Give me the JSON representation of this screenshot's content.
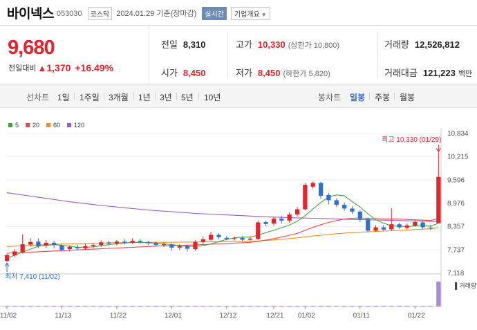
{
  "header": {
    "name": "바이넥스",
    "code": "053030",
    "market": "코스닥",
    "date_basis": "2024.01.29 기준(장마감)",
    "realtime": "실시간",
    "company_info": "기업개요"
  },
  "quote": {
    "price": "9,680",
    "diff_label": "전일대비",
    "diff_value": "1,370",
    "diff_pct": "+16.49%",
    "prev_close_label": "전일",
    "prev_close": "8,310",
    "high_label": "고가",
    "high": "10,330",
    "high_limit": "(상한가 10,800)",
    "volume_label": "거래량",
    "volume": "12,526,812",
    "open_label": "시가",
    "open": "8,450",
    "low_label": "저가",
    "low": "8,450",
    "low_limit": "(하한가 5,820)",
    "value_label": "거래대금",
    "value": "121,223",
    "value_unit": "백만"
  },
  "tabs": {
    "line_label": "선차트",
    "periods": [
      "1일",
      "1주일",
      "3개월",
      "1년",
      "3년",
      "5년",
      "10년"
    ],
    "candle_label": "봉차트",
    "candle_types": [
      "일봉",
      "주봉",
      "월봉"
    ],
    "active_candle": 0
  },
  "legend": [
    {
      "label": "5",
      "color": "#3fa63f"
    },
    {
      "label": "20",
      "color": "#e8484f"
    },
    {
      "label": "60",
      "color": "#f08c1e"
    },
    {
      "label": "120",
      "color": "#9a5cc7"
    }
  ],
  "chart_data": {
    "type": "candlestick",
    "y_ticks": [
      "10,834",
      "10,215",
      "9,596",
      "8,976",
      "8,357",
      "7,737",
      "7,118"
    ],
    "y_tick_values": [
      10834,
      10215,
      9596,
      8976,
      8357,
      7737,
      7118
    ],
    "x_ticks": [
      "11/02",
      "11/13",
      "11/22",
      "12/01",
      "12/12",
      "12/21",
      "01/02",
      "01/11",
      "01/22"
    ],
    "x_tick_index": [
      0,
      7,
      14,
      21,
      28,
      34,
      38,
      45,
      52
    ],
    "high_label": "최고 10,330 (01/29)",
    "low_label": "최저 7,410 (11/02)",
    "volume_legend": "거래량",
    "up_color": "#e8212b",
    "down_color": "#2f6fd6",
    "candles": [
      [
        7450,
        7600,
        7410,
        7630
      ],
      [
        7600,
        7700,
        7560,
        7760
      ],
      [
        7680,
        7890,
        7640,
        8150
      ],
      [
        7880,
        7950,
        7820,
        8050
      ],
      [
        7960,
        7840,
        7780,
        8050
      ],
      [
        7860,
        7930,
        7800,
        8000
      ],
      [
        7930,
        7870,
        7780,
        7980
      ],
      [
        7860,
        7740,
        7700,
        7900
      ],
      [
        7760,
        7820,
        7700,
        7860
      ],
      [
        7810,
        7780,
        7740,
        7880
      ],
      [
        7780,
        7840,
        7740,
        7900
      ],
      [
        7840,
        7870,
        7780,
        7920
      ],
      [
        7870,
        7940,
        7820,
        7990
      ],
      [
        7940,
        7910,
        7860,
        7980
      ],
      [
        7910,
        7960,
        7850,
        8000
      ],
      [
        7960,
        7930,
        7880,
        8020
      ],
      [
        7930,
        7980,
        7900,
        8050
      ],
      [
        7980,
        7950,
        7900,
        8020
      ],
      [
        7950,
        7920,
        7860,
        7980
      ],
      [
        7910,
        7870,
        7830,
        7960
      ],
      [
        7870,
        7890,
        7820,
        7940
      ],
      [
        7880,
        7800,
        7720,
        7920
      ],
      [
        7800,
        7840,
        7740,
        7890
      ],
      [
        7840,
        7770,
        7700,
        7880
      ],
      [
        7760,
        7950,
        7720,
        8000
      ],
      [
        7950,
        8020,
        7900,
        8100
      ],
      [
        8010,
        8140,
        7980,
        8220
      ],
      [
        8140,
        8080,
        8020,
        8180
      ],
      [
        8060,
        8030,
        7990,
        8110
      ],
      [
        8030,
        8050,
        7990,
        8090
      ],
      [
        8060,
        8010,
        7980,
        8100
      ],
      [
        8010,
        8040,
        7980,
        8090
      ],
      [
        8030,
        8470,
        8000,
        8520
      ],
      [
        8480,
        8430,
        8370,
        8520
      ],
      [
        8440,
        8570,
        8380,
        8620
      ],
      [
        8570,
        8520,
        8440,
        8650
      ],
      [
        8520,
        8680,
        8460,
        8740
      ],
      [
        8680,
        8820,
        8620,
        8880
      ],
      [
        8820,
        9470,
        8790,
        9520
      ],
      [
        9420,
        9520,
        9370,
        9560
      ],
      [
        9520,
        9180,
        9100,
        9550
      ],
      [
        9200,
        9060,
        8950,
        9250
      ],
      [
        9060,
        8940,
        8880,
        9100
      ],
      [
        8940,
        8840,
        8780,
        9000
      ],
      [
        8840,
        8760,
        8700,
        8900
      ],
      [
        8760,
        8560,
        8480,
        8800
      ],
      [
        8560,
        8250,
        8200,
        8600
      ],
      [
        8250,
        8340,
        8220,
        8400
      ],
      [
        8340,
        8280,
        8230,
        8400
      ],
      [
        8290,
        8420,
        8240,
        8850
      ],
      [
        8420,
        8340,
        8300,
        8460
      ],
      [
        8330,
        8390,
        8290,
        8440
      ],
      [
        8390,
        8480,
        8350,
        8520
      ],
      [
        8470,
        8340,
        8300,
        8510
      ],
      [
        8330,
        8310,
        8260,
        8400
      ],
      [
        8450,
        9680,
        8450,
        10330
      ]
    ],
    "ma5": [
      7520,
      7600,
      7680,
      7760,
      7840,
      7860,
      7880,
      7860,
      7840,
      7810,
      7810,
      7820,
      7850,
      7880,
      7900,
      7920,
      7940,
      7940,
      7930,
      7920,
      7900,
      7880,
      7860,
      7840,
      7830,
      7850,
      7900,
      7960,
      8020,
      8060,
      8080,
      8080,
      8130,
      8200,
      8260,
      8330,
      8400,
      8500,
      8650,
      8830,
      9000,
      9150,
      9200,
      9180,
      9020,
      8880,
      8700,
      8540,
      8450,
      8380,
      8370,
      8360,
      8380,
      8380,
      8370,
      8450
    ],
    "ma20": [
      7650,
      7660,
      7670,
      7680,
      7690,
      7700,
      7710,
      7720,
      7730,
      7740,
      7750,
      7760,
      7770,
      7780,
      7790,
      7800,
      7810,
      7820,
      7830,
      7840,
      7850,
      7855,
      7860,
      7865,
      7870,
      7880,
      7890,
      7900,
      7910,
      7920,
      7930,
      7940,
      7970,
      8000,
      8040,
      8080,
      8130,
      8180,
      8260,
      8340,
      8410,
      8470,
      8520,
      8560,
      8580,
      8590,
      8580,
      8570,
      8560,
      8560,
      8560,
      8550,
      8540,
      8530,
      8520,
      8580
    ],
    "ma60": [
      7830,
      7840,
      7850,
      7860,
      7870,
      7880,
      7890,
      7895,
      7900,
      7905,
      7910,
      7915,
      7920,
      7925,
      7930,
      7932,
      7934,
      7936,
      7938,
      7940,
      7942,
      7944,
      7946,
      7948,
      7950,
      7952,
      7954,
      7956,
      7958,
      7960,
      7962,
      7964,
      7975,
      7990,
      8005,
      8020,
      8040,
      8060,
      8085,
      8110,
      8130,
      8150,
      8170,
      8185,
      8200,
      8210,
      8220,
      8230,
      8240,
      8250,
      8260,
      8270,
      8280,
      8290,
      8300,
      8330
    ],
    "ma120": [
      9260,
      9230,
      9200,
      9170,
      9140,
      9110,
      9080,
      9050,
      9020,
      8995,
      8970,
      8945,
      8920,
      8900,
      8880,
      8860,
      8840,
      8820,
      8800,
      8785,
      8770,
      8755,
      8740,
      8725,
      8710,
      8700,
      8690,
      8680,
      8670,
      8660,
      8650,
      8640,
      8630,
      8620,
      8612,
      8605,
      8598,
      8592,
      8586,
      8580,
      8574,
      8568,
      8562,
      8556,
      8550,
      8545,
      8540,
      8535,
      8530,
      8525,
      8520,
      8515,
      8510,
      8505,
      8500,
      8490
    ],
    "volume_visible": "spike on last day only"
  }
}
